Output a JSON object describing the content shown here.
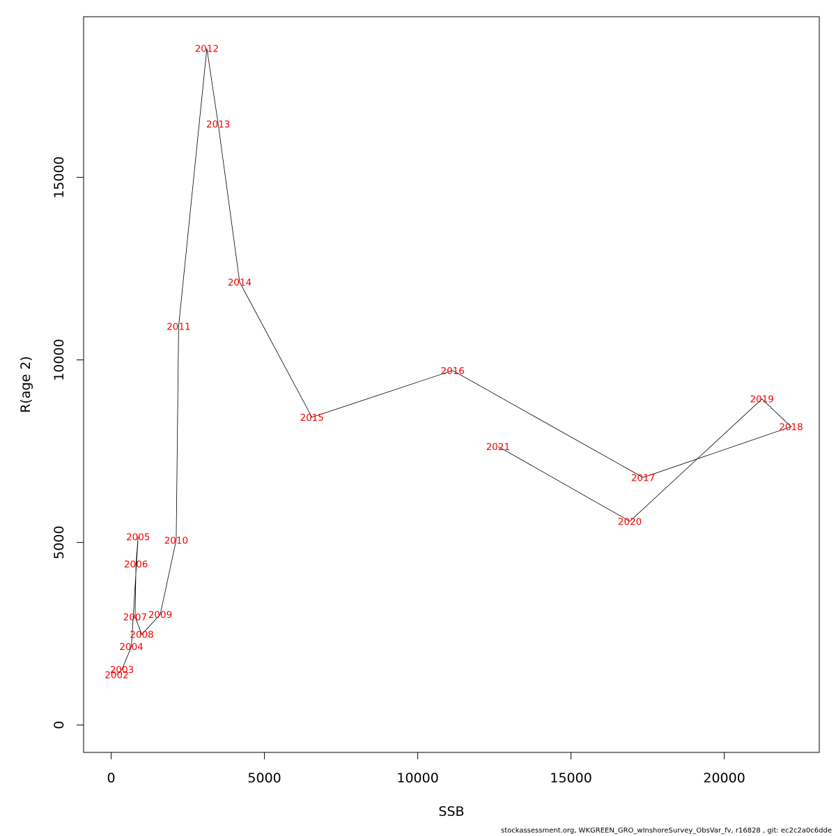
{
  "chart_data": {
    "type": "line",
    "xlabel": "SSB",
    "ylabel": "R(age 2)",
    "xlim": [
      -900,
      23100
    ],
    "ylim": [
      -750,
      19400
    ],
    "x_ticks": [
      0,
      5000,
      10000,
      15000,
      20000
    ],
    "x_tick_labels": [
      "0",
      "5000",
      "10000",
      "15000",
      "20000"
    ],
    "y_ticks": [
      0,
      5000,
      10000,
      15000
    ],
    "y_tick_labels": [
      "0",
      "5000",
      "10000",
      "15000"
    ],
    "grid": false,
    "point_label_color": "#ff0000",
    "line_color": "#000000",
    "points": [
      {
        "label": "2002",
        "x": 180,
        "y": 1380
      },
      {
        "label": "2003",
        "x": 350,
        "y": 1520
      },
      {
        "label": "2004",
        "x": 660,
        "y": 2150
      },
      {
        "label": "2005",
        "x": 880,
        "y": 5160
      },
      {
        "label": "2006",
        "x": 810,
        "y": 4410
      },
      {
        "label": "2007",
        "x": 780,
        "y": 2960
      },
      {
        "label": "2008",
        "x": 1000,
        "y": 2480
      },
      {
        "label": "2009",
        "x": 1600,
        "y": 3030
      },
      {
        "label": "2010",
        "x": 2120,
        "y": 5060
      },
      {
        "label": "2011",
        "x": 2200,
        "y": 10920
      },
      {
        "label": "2012",
        "x": 3120,
        "y": 18530
      },
      {
        "label": "2013",
        "x": 3490,
        "y": 16460
      },
      {
        "label": "2014",
        "x": 4190,
        "y": 12130
      },
      {
        "label": "2015",
        "x": 6550,
        "y": 8430
      },
      {
        "label": "2016",
        "x": 11140,
        "y": 9710
      },
      {
        "label": "2017",
        "x": 17350,
        "y": 6780
      },
      {
        "label": "2018",
        "x": 22180,
        "y": 8170
      },
      {
        "label": "2019",
        "x": 21230,
        "y": 8930
      },
      {
        "label": "2020",
        "x": 16920,
        "y": 5580
      },
      {
        "label": "2021",
        "x": 12620,
        "y": 7630
      }
    ]
  },
  "footer": "stockassessment.org, WKGREEN_GRO_wInshoreSurvey_ObsVar_fv, r16828 , git: ec2c2a0c6dde"
}
